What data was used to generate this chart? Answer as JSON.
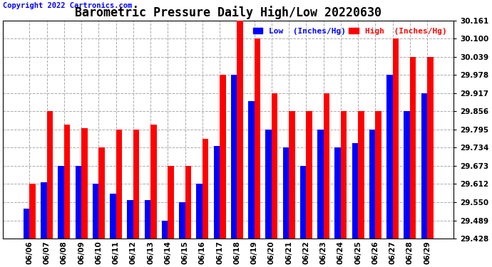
{
  "title": "Barometric Pressure Daily High/Low 20220630",
  "copyright": "Copyright 2022 Cartronics.com",
  "legend_low": "Low  (Inches/Hg)",
  "legend_high": "High  (Inches/Hg)",
  "dates": [
    "06/06",
    "06/07",
    "06/08",
    "06/09",
    "06/10",
    "06/11",
    "06/12",
    "06/13",
    "06/14",
    "06/15",
    "06/16",
    "06/17",
    "06/18",
    "06/19",
    "06/20",
    "06/21",
    "06/22",
    "06/23",
    "06/24",
    "06/25",
    "06/26",
    "06/27",
    "06/28",
    "06/29"
  ],
  "low": [
    29.528,
    29.617,
    29.673,
    29.673,
    29.612,
    29.579,
    29.557,
    29.557,
    29.489,
    29.551,
    29.612,
    29.74,
    29.978,
    29.89,
    29.795,
    29.734,
    29.673,
    29.795,
    29.734,
    29.75,
    29.795,
    29.978,
    29.856,
    29.917
  ],
  "high": [
    29.612,
    29.856,
    29.812,
    29.8,
    29.734,
    29.795,
    29.795,
    29.812,
    29.673,
    29.673,
    29.762,
    29.978,
    30.161,
    30.1,
    29.917,
    29.856,
    29.856,
    29.917,
    29.856,
    29.856,
    29.856,
    30.1,
    30.039,
    30.039
  ],
  "ymin": 29.428,
  "ymax": 30.161,
  "yticks": [
    29.428,
    29.489,
    29.55,
    29.612,
    29.673,
    29.734,
    29.795,
    29.856,
    29.917,
    29.978,
    30.039,
    30.1,
    30.161
  ],
  "bar_width": 0.35,
  "low_color": "#0000ff",
  "high_color": "#ff0000",
  "bg_color": "#ffffff",
  "grid_color": "#aaaaaa",
  "title_fontsize": 12,
  "tick_fontsize": 7.5,
  "copyright_fontsize": 7.5
}
